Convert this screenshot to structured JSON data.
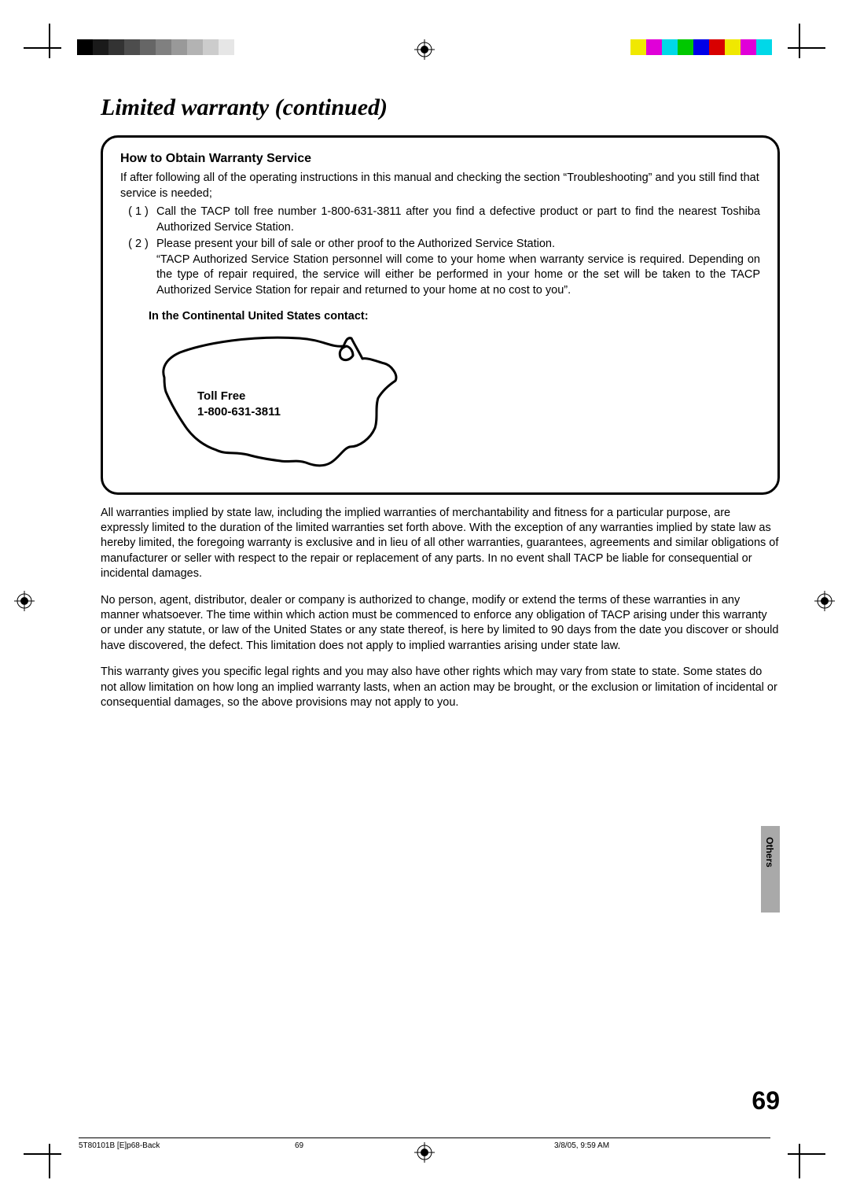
{
  "title": "Limited warranty (continued)",
  "box": {
    "heading": "How to Obtain Warranty Service",
    "intro": "If after following all of the operating instructions in this manual and checking the section “Troubleshooting” and you still find that service is needed;",
    "items": [
      {
        "num": "( 1 )",
        "text": "Call the TACP toll free number 1-800-631-3811 after you find a defective product or part to find the nearest Toshiba Authorized Service Station."
      },
      {
        "num": "( 2 )",
        "text": "Please present your bill of sale or other proof to the Authorized Service Station.\n“TACP Authorized Service Station personnel will come to your home when warranty service is required. Depending on the type of repair required, the service will either be performed in your home or the set will be taken to the TACP Authorized Service Station for repair and returned to your home at no cost to you”."
      }
    ],
    "contactHeading": "In the Continental United States contact:",
    "tollFreeLabel": "Toll Free",
    "tollFreeNumber": "1-800-631-3811"
  },
  "paragraphs": [
    "All warranties implied by state law, including the implied warranties of merchantability and fitness for a particular purpose, are expressly limited to the duration of the limited warranties set forth above. With the exception of any warranties implied by state law as hereby limited, the foregoing warranty is exclusive and in lieu of all other warranties, guarantees, agreements and similar obligations of manufacturer or seller with respect to the repair or replacement of any parts. In no event shall TACP be liable for consequential or incidental damages.",
    "No person, agent, distributor, dealer or company is authorized to change, modify or extend the terms of these warranties in any manner whatsoever. The time within which action must be commenced to enforce any obligation of TACP arising under this warranty or under any statute, or law of the United States or any state thereof, is here by limited to 90 days from the date you discover or should have discovered, the defect. This limitation does not apply to implied warranties arising under state law.",
    "This warranty gives you specific legal rights and you may also have other rights which may vary from state to state. Some states do not allow limitation on how long an implied warranty lasts, when an action may be brought, or the exclusion or limitation of incidental or consequential damages, so the above provisions may not apply to you."
  ],
  "sideTab": "Others",
  "pageNumber": "69",
  "footer": {
    "docId": "5T80101B [E]p68-Back",
    "pg": "69",
    "dateTime": "3/8/05, 9:59 AM"
  },
  "grayBar": [
    "#000000",
    "#1a1a1a",
    "#333333",
    "#4d4d4d",
    "#666666",
    "#808080",
    "#999999",
    "#b3b3b3",
    "#cccccc",
    "#e6e6e6"
  ],
  "colorBar": [
    "#f0e800",
    "#e000d8",
    "#00d8e8",
    "#00c800",
    "#0000e8",
    "#d80000",
    "#f0e800",
    "#e000d8",
    "#00d8e8"
  ]
}
